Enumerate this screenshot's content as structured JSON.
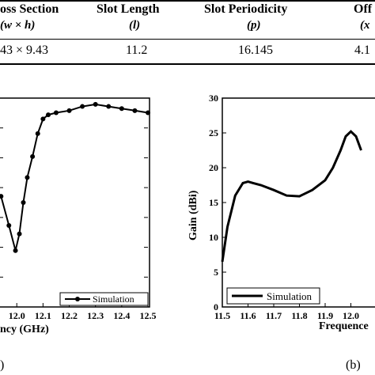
{
  "table": {
    "headers": [
      {
        "label": "oss Section",
        "sub": "(w × h)"
      },
      {
        "label": "Slot Length",
        "sub": "(l)"
      },
      {
        "label": "Slot Periodicity",
        "sub": "(p)"
      },
      {
        "label": "Off",
        "sub": "(x"
      }
    ],
    "row": [
      "43 × 9.43",
      "11.2",
      "16.145",
      "4.1"
    ]
  },
  "panel_a": {
    "label": ")",
    "xlabel": "ncy (GHz)",
    "legend": "Simulation"
  },
  "panel_b": {
    "label": "(b)",
    "xlabel": "Frequence",
    "ylabel": "Gain (dBi)",
    "legend": "Simulation"
  },
  "chart_data": [
    {
      "type": "line",
      "title": "",
      "xlabel": "ncy (GHz)",
      "ylabel": "",
      "xlim": [
        11.93,
        12.5
      ],
      "x_ticks": [
        12.0,
        12.1,
        12.2,
        12.3,
        12.4,
        12.5
      ],
      "x_tick_labels": [
        "12.0",
        "12.1",
        "12.2",
        "12.3",
        "12.4",
        "12.5"
      ],
      "y_ticks_unlabeled": 6,
      "series": [
        {
          "name": "Simulation",
          "marker": "circle",
          "x": [
            11.94,
            11.97,
            11.995,
            12.01,
            12.025,
            12.04,
            12.06,
            12.08,
            12.1,
            12.12,
            12.15,
            12.2,
            12.25,
            12.3,
            12.35,
            12.4,
            12.45,
            12.5
          ],
          "y_norm": [
            0.53,
            0.39,
            0.27,
            0.35,
            0.5,
            0.62,
            0.72,
            0.83,
            0.9,
            0.92,
            0.93,
            0.94,
            0.96,
            0.97,
            0.96,
            0.95,
            0.94,
            0.93
          ]
        }
      ],
      "legend": "bottom-right",
      "grid": false
    },
    {
      "type": "line",
      "title": "",
      "xlabel": "Frequence",
      "ylabel": "Gain (dBi)",
      "xlim": [
        11.5,
        12.1
      ],
      "ylim": [
        0,
        30
      ],
      "x_ticks": [
        11.5,
        11.6,
        11.7,
        11.8,
        11.9,
        12.0
      ],
      "x_tick_labels": [
        "11.5",
        "11.6",
        "11.7",
        "11.8",
        "11.9",
        "12.0"
      ],
      "y_ticks": [
        0,
        5,
        10,
        15,
        20,
        25,
        30
      ],
      "series": [
        {
          "name": "Simulation",
          "x": [
            11.5,
            11.52,
            11.55,
            11.58,
            11.6,
            11.62,
            11.65,
            11.7,
            11.75,
            11.8,
            11.85,
            11.9,
            11.93,
            11.96,
            11.98,
            12.0,
            12.02,
            12.04
          ],
          "y": [
            6.5,
            11.5,
            16.0,
            17.8,
            18.0,
            17.8,
            17.5,
            16.8,
            16.0,
            15.9,
            16.8,
            18.2,
            20.0,
            22.5,
            24.5,
            25.2,
            24.5,
            22.5
          ]
        }
      ],
      "legend": "bottom-left",
      "grid": false
    }
  ]
}
